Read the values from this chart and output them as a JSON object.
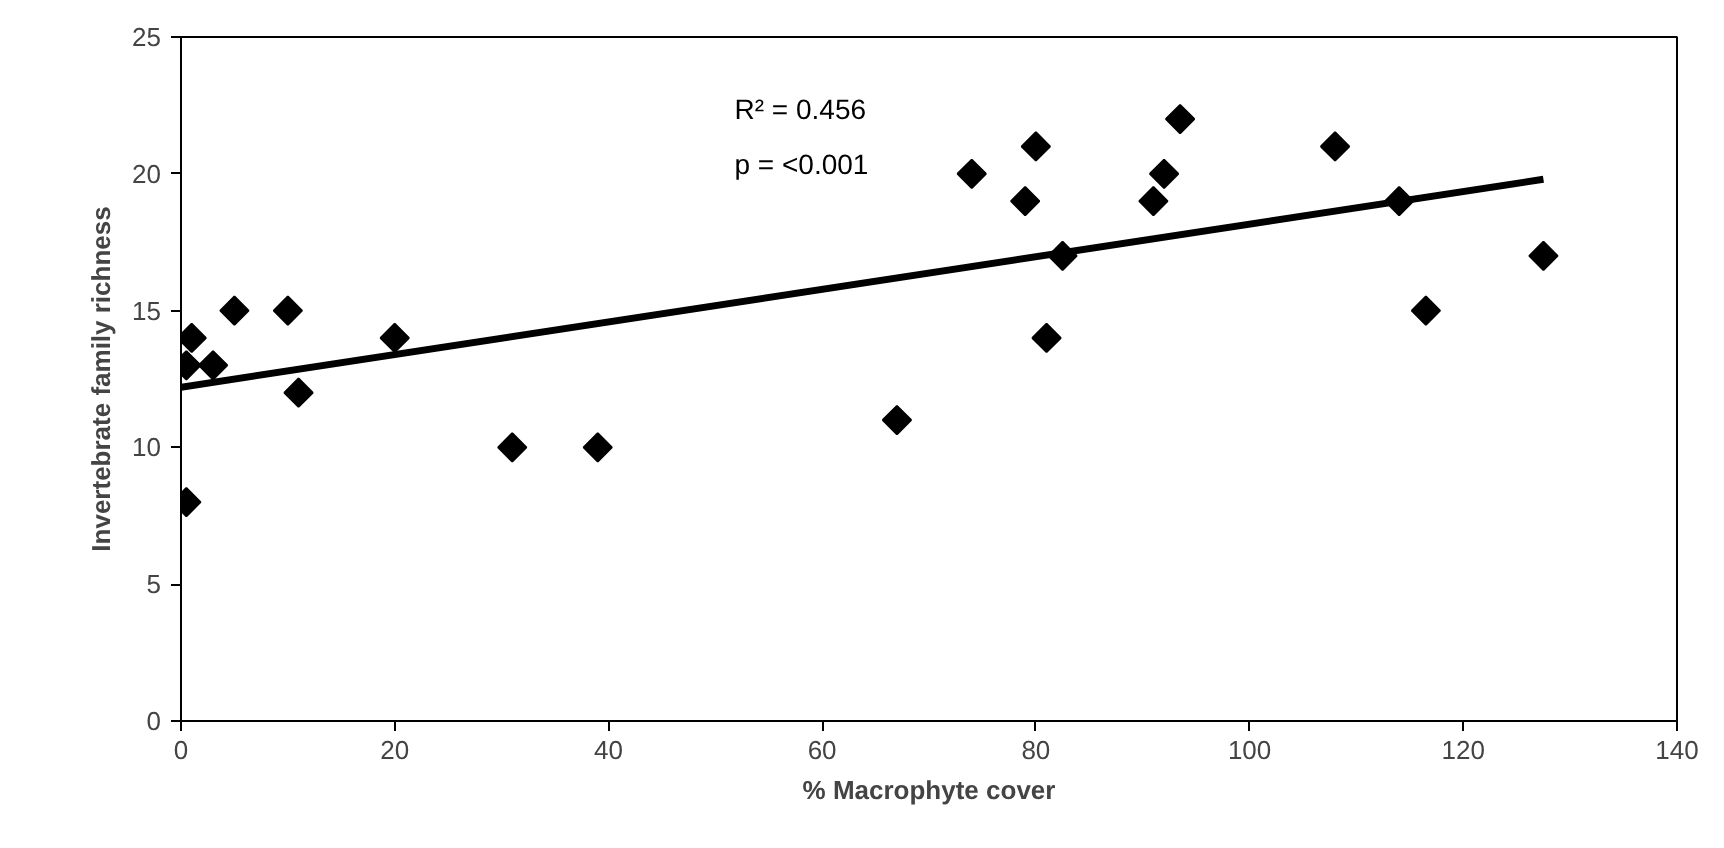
{
  "chart_data": {
    "type": "scatter",
    "xlabel": "% Macrophyte cover",
    "ylabel": "Invertebrate family richness",
    "series": [
      {
        "color": "#000000",
        "marker": "diamond",
        "x": [
          0.5,
          0.5,
          1,
          3,
          5,
          10,
          11,
          20,
          31,
          39,
          67,
          74,
          79,
          80,
          81,
          82.5,
          91,
          92,
          93.5,
          108,
          114,
          116.5,
          127.5
        ],
        "values": [
          8,
          13,
          14,
          13,
          15,
          15,
          12,
          14,
          10,
          10,
          11,
          20,
          19,
          21,
          14,
          17,
          19,
          20,
          22,
          21,
          19,
          15,
          17
        ]
      },
      {
        "type": "line",
        "color": "#000000",
        "marker": "none",
        "line_style": "solid",
        "x": [
          0,
          127.5
        ],
        "values": [
          12.2,
          19.8
        ]
      }
    ],
    "annotations": [
      "R² = 0.456",
      "p = <0.001"
    ],
    "xlim": [
      0,
      140
    ],
    "xticks": [
      0,
      20,
      40,
      60,
      80,
      100,
      120,
      140
    ],
    "ylim": [
      0,
      25
    ],
    "yticks": [
      0,
      5,
      10,
      15,
      20,
      25
    ],
    "grid": false
  }
}
